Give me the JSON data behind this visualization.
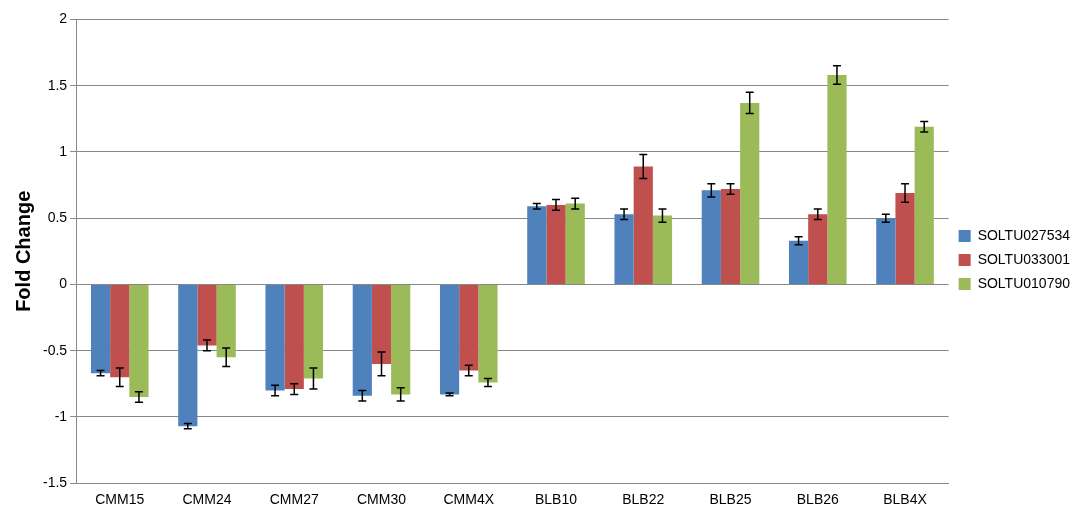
{
  "chart_data": {
    "type": "bar",
    "ylabel": "Fold Change",
    "categories": [
      "CMM15",
      "CMM24",
      "CMM27",
      "CMM30",
      "CMM4X",
      "BLB10",
      "BLB22",
      "BLB25",
      "BLB26",
      "BLB4X"
    ],
    "series": [
      {
        "name": "SOLTU027534",
        "color": "#4f81bd",
        "values": [
          -0.67,
          -1.07,
          -0.8,
          -0.84,
          -0.83,
          0.59,
          0.53,
          0.71,
          0.33,
          0.5
        ],
        "errors": [
          0.02,
          0.02,
          0.04,
          0.04,
          0.01,
          0.02,
          0.04,
          0.05,
          0.03,
          0.03
        ]
      },
      {
        "name": "SOLTU033001",
        "color": "#c0504d",
        "values": [
          -0.7,
          -0.46,
          -0.79,
          -0.6,
          -0.65,
          0.6,
          0.89,
          0.72,
          0.53,
          0.69
        ],
        "errors": [
          0.07,
          0.04,
          0.04,
          0.09,
          0.04,
          0.04,
          0.09,
          0.04,
          0.04,
          0.07
        ]
      },
      {
        "name": "SOLTU010790",
        "color": "#9bbb59",
        "values": [
          -0.85,
          -0.55,
          -0.71,
          -0.83,
          -0.74,
          0.61,
          0.52,
          1.37,
          1.58,
          1.19
        ],
        "errors": [
          0.04,
          0.07,
          0.08,
          0.05,
          0.03,
          0.04,
          0.05,
          0.08,
          0.07,
          0.04
        ]
      }
    ],
    "ylim": [
      -1.5,
      2
    ],
    "yticks": [
      -1.5,
      -1,
      -0.5,
      0,
      0.5,
      1,
      1.5,
      2
    ],
    "grid": "y",
    "legend": "right"
  }
}
